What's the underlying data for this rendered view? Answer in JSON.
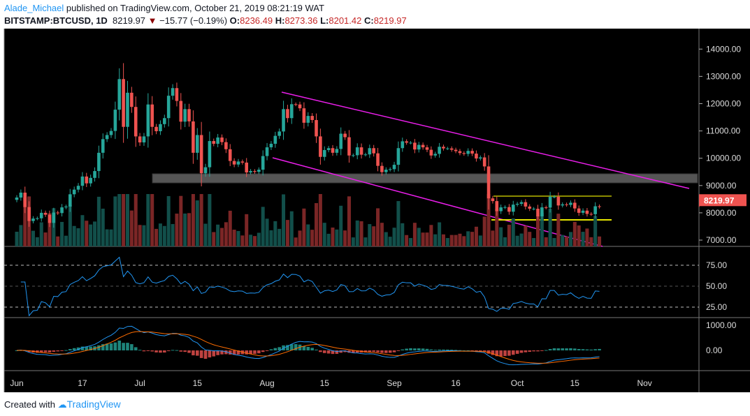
{
  "header": {
    "author": "Alade_Michael",
    "published": "published on TradingView.com, October 21, 2019 08:21:19 WAT",
    "symbol": "BITSTAMP:BTCUSD, 1D",
    "last": "8219.97",
    "change": "−15.77 (−0.19%)",
    "o_label": "O:",
    "o": "8236.49",
    "h_label": "H:",
    "h": "8273.36",
    "l_label": "L:",
    "l": "8201.42",
    "c_label": "C:",
    "c": "8219.97"
  },
  "colors": {
    "up": "#26a69a",
    "down": "#ef5350",
    "vol_up": "#124f4a",
    "vol_down": "#7b2626",
    "rsi": "#2196f3",
    "macd": "#2196f3",
    "signal": "#ff6d00",
    "channel": "#e91ee9",
    "zone": "#555555",
    "range_top": "#8b8b00",
    "range_bottom": "#e6e600",
    "price_label": "#ef5350"
  },
  "price_axis": {
    "ticks": [
      "14000.00",
      "13000.00",
      "12000.00",
      "11000.00",
      "10000.00",
      "9000.00",
      "8000.00",
      "7000.00"
    ],
    "current_label": "8219.97"
  },
  "rsi_axis": {
    "ticks": [
      "75.00",
      "50.00",
      "25.00"
    ]
  },
  "macd_axis": {
    "ticks": [
      "1000.00",
      "0.00"
    ]
  },
  "time_axis": {
    "labels": [
      "Jun",
      "17",
      "Jul",
      "15",
      "Aug",
      "15",
      "Sep",
      "16",
      "Oct",
      "15",
      "Nov"
    ]
  },
  "chart_data": {
    "type": "candlestick",
    "start_date": "2019-06-01",
    "closes": [
      8560,
      8740,
      8210,
      7700,
      7790,
      7800,
      8000,
      7930,
      7630,
      8010,
      7990,
      8200,
      8230,
      8680,
      8850,
      8990,
      9330,
      9080,
      9280,
      9530,
      10200,
      10700,
      10850,
      11000,
      11780,
      12900,
      11150,
      12400,
      11880,
      10800,
      10580,
      10800,
      11970,
      11150,
      10990,
      11250,
      11470,
      12290,
      12570,
      12100,
      11340,
      11800,
      11350,
      10200,
      10850,
      9450,
      9670,
      10630,
      10530,
      10760,
      10590,
      10330,
      9900,
      9770,
      9880,
      9840,
      9480,
      9530,
      9500,
      9580,
      10080,
      10400,
      10530,
      10820,
      10980,
      11800,
      11470,
      11980,
      11970,
      11830,
      11300,
      11550,
      11400,
      10800,
      10050,
      10300,
      10370,
      10200,
      10340,
      10900,
      10770,
      10100,
      10110,
      10400,
      10130,
      10140,
      10370,
      10180,
      9720,
      9490,
      9580,
      9600,
      9760,
      10370,
      10620,
      10570,
      10570,
      10320,
      10490,
      10400,
      10310,
      10100,
      10160,
      10420,
      10360,
      10360,
      10310,
      10260,
      10190,
      10160,
      10270,
      10170,
      9990,
      10030,
      9700,
      8530,
      8430,
      8060,
      8200,
      8210,
      8040,
      8300,
      8330,
      8390,
      8230,
      8150,
      8150,
      7870,
      8200,
      8190,
      8590,
      8590,
      8270,
      8310,
      8290,
      8370,
      8160,
      8000,
      8080,
      7960,
      7950,
      8240,
      8219.97
    ],
    "indicators": [
      "Volume",
      "RSI",
      "MACD"
    ]
  },
  "footer": {
    "created": "Created with",
    "brand": "TradingView"
  }
}
